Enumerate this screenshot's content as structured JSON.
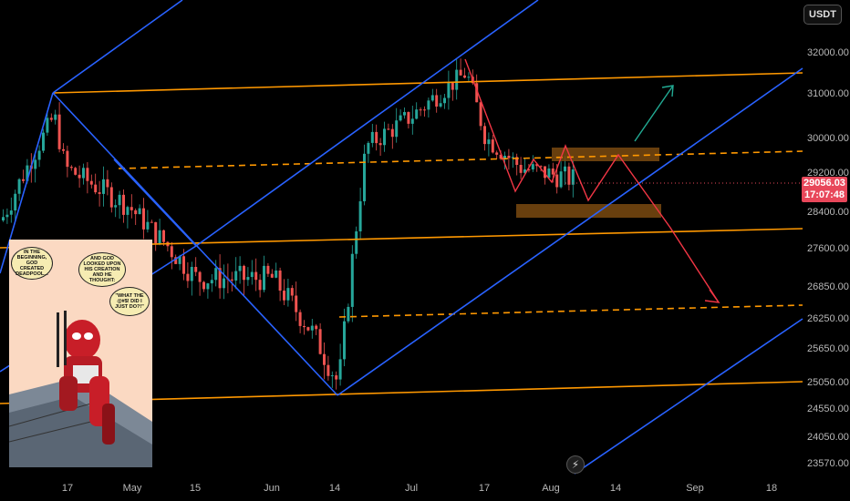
{
  "quote_currency": "USDT",
  "current_price": "29056.03",
  "countdown": "17:07:48",
  "price_axis": [
    "32000.00",
    "31000.00",
    "30000.00",
    "29200.00",
    "28400.00",
    "27600.00",
    "26850.00",
    "26250.00",
    "25650.00",
    "25050.00",
    "24550.00",
    "24050.00",
    "23570.00"
  ],
  "time_axis": [
    "17",
    "May",
    "15",
    "Jun",
    "14",
    "Jul",
    "17",
    "Aug",
    "14",
    "Sep",
    "18"
  ],
  "comic": {
    "bubble1": "IN THE BEGINNING, GOD CREATED DEADPOOL...",
    "bubble2": "AND GOD LOOKED UPON HIS CREATION AND HE THOUGHT:",
    "bubble3": "\"WHAT THE @#$! DID I JUST DO?!\""
  },
  "colors": {
    "background": "#000000",
    "candle_up": "#26a69a",
    "candle_down": "#ef5350",
    "channel_line": "#2962ff",
    "level_line": "#ff9800",
    "projection_down": "#f23645",
    "projection_up": "#22ab94",
    "zone": "#7a4a10",
    "price_badge": "#e8475a"
  },
  "chart_data": {
    "type": "candlestick",
    "symbol_quote": "USDT",
    "y_ticks": [
      32000,
      31000,
      30000,
      29200,
      28400,
      27600,
      26850,
      26250,
      25650,
      25050,
      24550,
      24050,
      23570
    ],
    "x_ticks": [
      "17",
      "May",
      "15",
      "Jun",
      "14",
      "Jul",
      "17",
      "Aug",
      "14",
      "Sep",
      "18"
    ],
    "last_price": 29056.03,
    "countdown": "17:07:48",
    "approx_path": [
      {
        "x": "early Apr",
        "y": 28200
      },
      {
        "x": "Apr 17",
        "y": 30500
      },
      {
        "x": "Apr 20",
        "y": 29300
      },
      {
        "x": "May 1",
        "y": 28500
      },
      {
        "x": "May 15",
        "y": 27000
      },
      {
        "x": "Jun 1",
        "y": 27000
      },
      {
        "x": "Jun 10",
        "y": 26000
      },
      {
        "x": "Jun 15",
        "y": 25000
      },
      {
        "x": "Jun 21",
        "y": 29800
      },
      {
        "x": "Jul 1",
        "y": 30500
      },
      {
        "x": "Jul 13",
        "y": 31500
      },
      {
        "x": "Jul 17",
        "y": 30000
      },
      {
        "x": "Jul 25",
        "y": 29300
      },
      {
        "x": "Aug 7",
        "y": 29056
      }
    ],
    "horizontal_levels": [
      31400,
      29500,
      27950,
      26300,
      25050
    ],
    "zones": [
      {
        "from": 29350,
        "to": 29600
      },
      {
        "from": 28500,
        "to": 28750
      }
    ]
  }
}
